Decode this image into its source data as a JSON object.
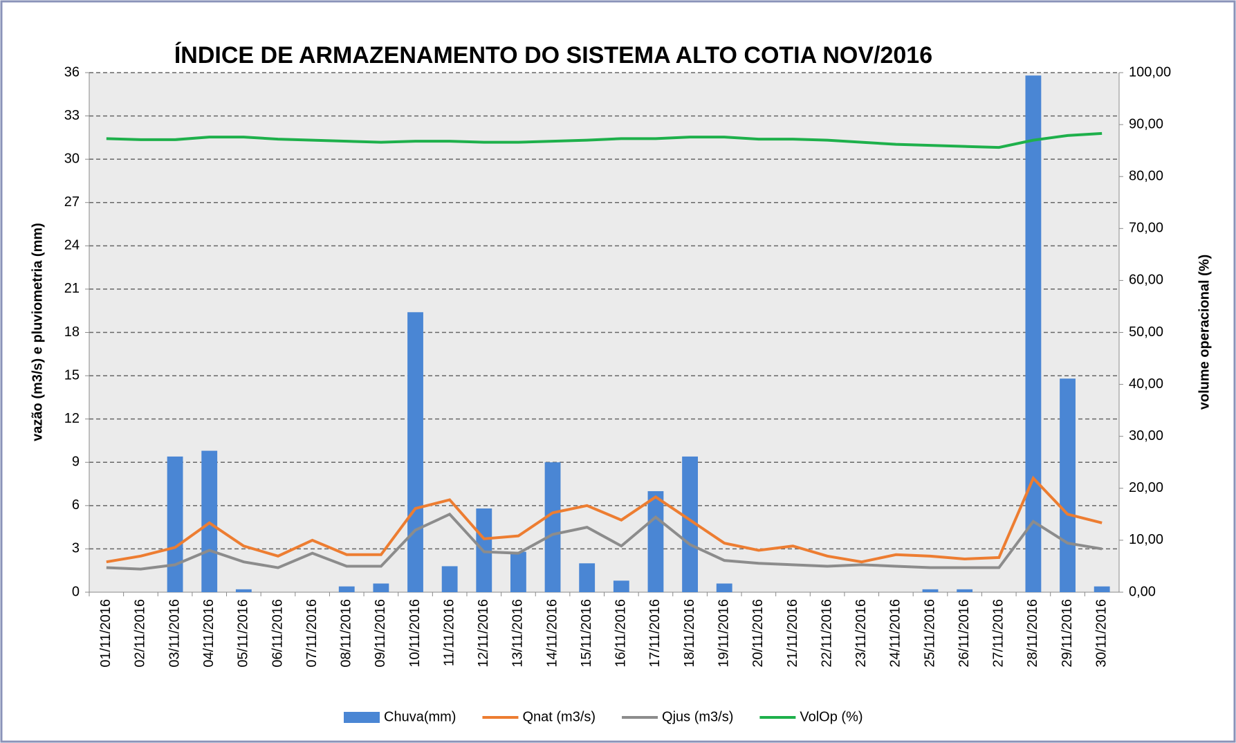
{
  "chart_data": {
    "type": "bar_line",
    "title": "ÍNDICE DE ARMAZENAMENTO DO SISTEMA ALTO COTIA  NOV/2016",
    "ylabel": "vazão (m3/s) e pluviometria (mm)",
    "y2label": "volume operacional (%)",
    "categories": [
      "01/11/2016",
      "02/11/2016",
      "03/11/2016",
      "04/11/2016",
      "05/11/2016",
      "06/11/2016",
      "07/11/2016",
      "08/11/2016",
      "09/11/2016",
      "10/11/2016",
      "11/11/2016",
      "12/11/2016",
      "13/11/2016",
      "14/11/2016",
      "15/11/2016",
      "16/11/2016",
      "17/11/2016",
      "18/11/2016",
      "19/11/2016",
      "20/11/2016",
      "21/11/2016",
      "22/11/2016",
      "23/11/2016",
      "24/11/2016",
      "25/11/2016",
      "26/11/2016",
      "27/11/2016",
      "28/11/2016",
      "29/11/2016",
      "30/11/2016"
    ],
    "series": [
      {
        "name": "Chuva(mm)",
        "kind": "bar",
        "color": "#4a86d4",
        "values": [
          0,
          0,
          9.4,
          9.8,
          0.2,
          0,
          0,
          0.4,
          0.6,
          19.4,
          1.8,
          5.8,
          2.8,
          9.0,
          2.0,
          0.8,
          7.0,
          9.4,
          0.6,
          0,
          0,
          0,
          0,
          0,
          0.2,
          0.2,
          0,
          35.8,
          14.8,
          0.4
        ]
      },
      {
        "name": "Qnat (m3/s)",
        "kind": "line",
        "color": "#ed7d31",
        "values": [
          2.1,
          2.5,
          3.1,
          4.8,
          3.2,
          2.5,
          3.6,
          2.6,
          2.6,
          5.8,
          6.4,
          3.7,
          3.9,
          5.5,
          6.0,
          5.0,
          6.6,
          5.0,
          3.4,
          2.9,
          3.2,
          2.5,
          2.1,
          2.6,
          2.5,
          2.3,
          2.4,
          7.9,
          5.4,
          4.8
        ]
      },
      {
        "name": "Qjus (m3/s)",
        "kind": "line",
        "color": "#8c8c8c",
        "values": [
          1.7,
          1.6,
          1.9,
          2.9,
          2.1,
          1.7,
          2.7,
          1.8,
          1.8,
          4.3,
          5.4,
          2.8,
          2.7,
          4.0,
          4.5,
          3.2,
          5.2,
          3.3,
          2.2,
          2.0,
          1.9,
          1.8,
          1.9,
          1.8,
          1.7,
          1.7,
          1.7,
          4.9,
          3.4,
          3.0
        ]
      },
      {
        "name": "VolOp (%)",
        "kind": "line",
        "axis": "y2",
        "color": "#1eb04b",
        "values": [
          87.3,
          87.1,
          87.1,
          87.6,
          87.6,
          87.2,
          87.0,
          86.8,
          86.6,
          86.8,
          86.8,
          86.6,
          86.6,
          86.8,
          87.0,
          87.3,
          87.3,
          87.6,
          87.6,
          87.2,
          87.2,
          87.0,
          86.6,
          86.2,
          86.0,
          85.8,
          85.6,
          87.0,
          87.9,
          88.3
        ]
      }
    ],
    "ylim": [
      0,
      36
    ],
    "yticks": [
      0,
      3,
      6,
      9,
      12,
      15,
      18,
      21,
      24,
      27,
      30,
      33,
      36
    ],
    "y2lim": [
      0,
      100
    ],
    "y2ticks": [
      {
        "value": 0,
        "label": "0,00"
      },
      {
        "value": 10,
        "label": "10,00"
      },
      {
        "value": 20,
        "label": "20,00"
      },
      {
        "value": 30,
        "label": "30,00"
      },
      {
        "value": 40,
        "label": "40,00"
      },
      {
        "value": 50,
        "label": "50,00"
      },
      {
        "value": 60,
        "label": "60,00"
      },
      {
        "value": 70,
        "label": "70,00"
      },
      {
        "value": 80,
        "label": "80,00"
      },
      {
        "value": 90,
        "label": "90,00"
      },
      {
        "value": 100,
        "label": "100,00"
      }
    ],
    "grid": true,
    "legend": "bottom"
  }
}
